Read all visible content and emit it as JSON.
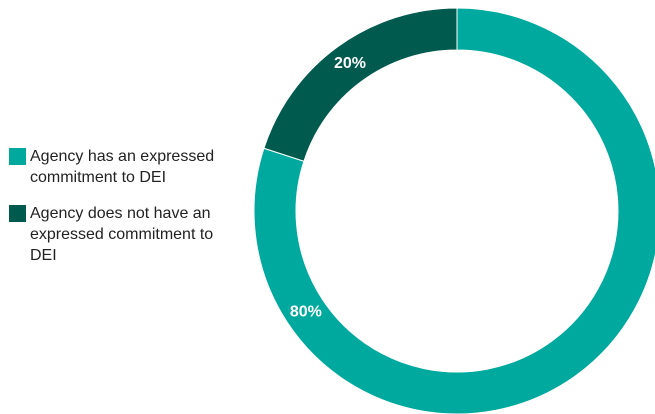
{
  "chart_data": {
    "type": "pie",
    "title": "",
    "categories": [
      "Agency has an expressed commitment to DEI",
      "Agency does not have an expressed commitment to DEI"
    ],
    "values": [
      80,
      20
    ],
    "data_labels": [
      "80%",
      "20%"
    ],
    "colors": [
      "#00a99d",
      "#005a4e"
    ],
    "legend_position": "left",
    "donut": true
  },
  "legend": {
    "items": [
      {
        "label": "Agency has an expressed commitment to DEI",
        "color": "#00a99d"
      },
      {
        "label": "Agency does not have an expressed commitment to DEI",
        "color": "#005a4e"
      }
    ]
  }
}
